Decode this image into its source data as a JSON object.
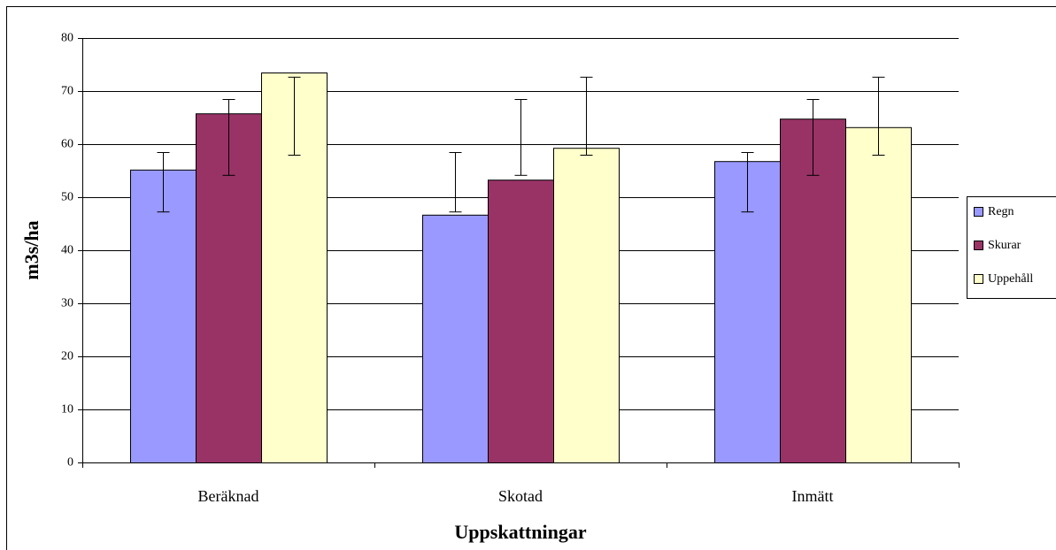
{
  "chart_data": {
    "type": "bar",
    "x_label": "Uppskattningar",
    "y_label": "m3s/ha",
    "categories": [
      "Beräknad",
      "Skotad",
      "Inmätt"
    ],
    "series": [
      {
        "name": "Regn",
        "color": "#9999ff",
        "values": [
          55.2,
          46.7,
          56.8
        ],
        "error_low": [
          47.3,
          47.3,
          47.3
        ],
        "error_high": [
          58.5,
          58.5,
          58.5
        ]
      },
      {
        "name": "Skurar",
        "color": "#993366",
        "values": [
          65.8,
          53.3,
          64.8
        ],
        "error_low": [
          54.2,
          54.2,
          54.2
        ],
        "error_high": [
          68.5,
          68.5,
          68.5
        ]
      },
      {
        "name": "Uppehåll",
        "color": "#ffffcc",
        "values": [
          73.5,
          59.3,
          63.2
        ],
        "error_low": [
          58,
          58,
          58
        ],
        "error_high": [
          72.7,
          72.7,
          72.7
        ]
      }
    ],
    "ylim": [
      0,
      80
    ],
    "yticks": [
      0,
      10,
      20,
      30,
      40,
      50,
      60,
      70,
      80
    ],
    "grid": true,
    "legend": "right"
  }
}
